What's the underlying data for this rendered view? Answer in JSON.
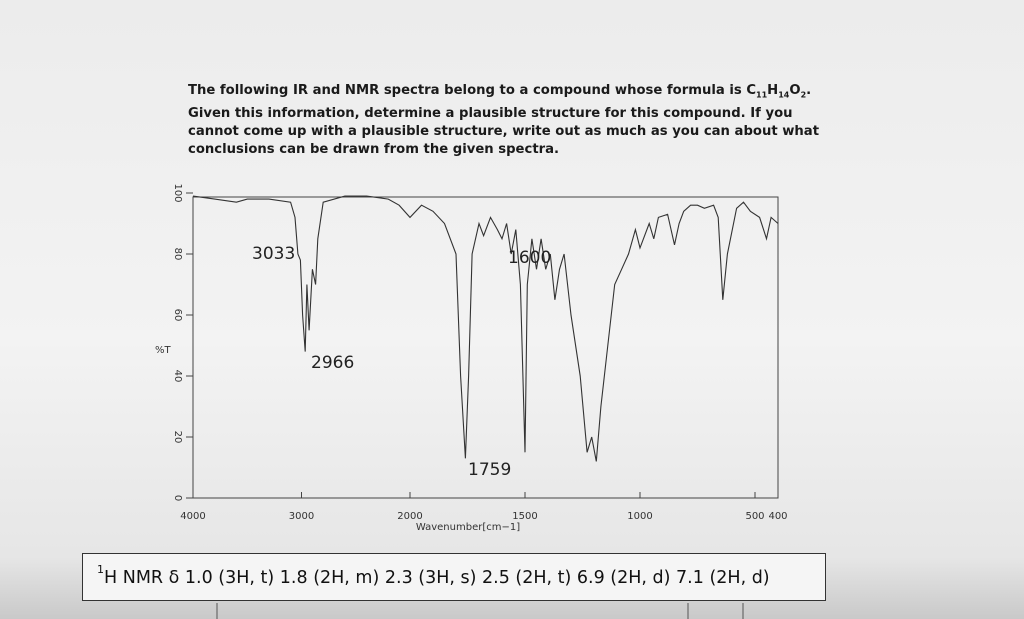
{
  "question": {
    "lead": "The following IR and NMR spectra belong to a compound whose formula is ",
    "formula": [
      "C",
      "11",
      "H",
      "14",
      "O",
      "2",
      "."
    ],
    "lines": [
      "Given this information, determine a plausible structure for this compound. If you",
      "cannot come up with a plausible structure, write out as much as you can about what",
      "conclusions can be drawn from the given spectra."
    ]
  },
  "chart_data": {
    "type": "line",
    "y_label": "%T",
    "x_label": "Wavenumber[cm−1]",
    "color": "#333333",
    "xlim": [
      4000,
      400
    ],
    "xbreak": 2000,
    "ylim": [
      0,
      100
    ],
    "xticks": [
      4000,
      3000,
      2000,
      1500,
      1000,
      500,
      400
    ],
    "yticks": [
      0,
      20,
      40,
      60,
      80,
      100
    ],
    "annotations": [
      "3033",
      "2966",
      "1759",
      "1600"
    ],
    "x": [
      4000,
      3800,
      3600,
      3500,
      3300,
      3100,
      3060,
      3033,
      3010,
      2990,
      2966,
      2950,
      2930,
      2900,
      2870,
      2850,
      2800,
      2600,
      2400,
      2200,
      2100,
      2000,
      1950,
      1900,
      1850,
      1800,
      1780,
      1759,
      1745,
      1730,
      1700,
      1680,
      1650,
      1620,
      1600,
      1580,
      1560,
      1540,
      1520,
      1500,
      1490,
      1470,
      1450,
      1430,
      1410,
      1390,
      1370,
      1350,
      1330,
      1300,
      1260,
      1230,
      1210,
      1190,
      1170,
      1140,
      1110,
      1080,
      1050,
      1020,
      1000,
      960,
      940,
      920,
      880,
      850,
      830,
      810,
      780,
      750,
      720,
      680,
      660,
      640,
      620,
      580,
      550,
      520,
      480,
      450,
      430,
      400
    ],
    "values": [
      99,
      98,
      97,
      98,
      98,
      97,
      92,
      80,
      78,
      60,
      48,
      70,
      55,
      75,
      70,
      85,
      97,
      99,
      99,
      98,
      96,
      92,
      96,
      94,
      90,
      80,
      40,
      13,
      40,
      80,
      90,
      86,
      92,
      88,
      85,
      90,
      80,
      88,
      70,
      15,
      70,
      85,
      75,
      85,
      75,
      80,
      65,
      75,
      80,
      60,
      40,
      15,
      20,
      12,
      30,
      50,
      70,
      75,
      80,
      88,
      82,
      90,
      85,
      92,
      93,
      83,
      90,
      94,
      96,
      96,
      95,
      96,
      92,
      65,
      80,
      95,
      97,
      94,
      92,
      85,
      92,
      90
    ]
  },
  "nmr": {
    "superscript": "1",
    "text": "H NMR δ 1.0 (3H, t) 1.8 (2H, m) 2.3 (3H, s) 2.5 (2H, t) 6.9 (2H, d) 7.1 (2H, d)"
  }
}
